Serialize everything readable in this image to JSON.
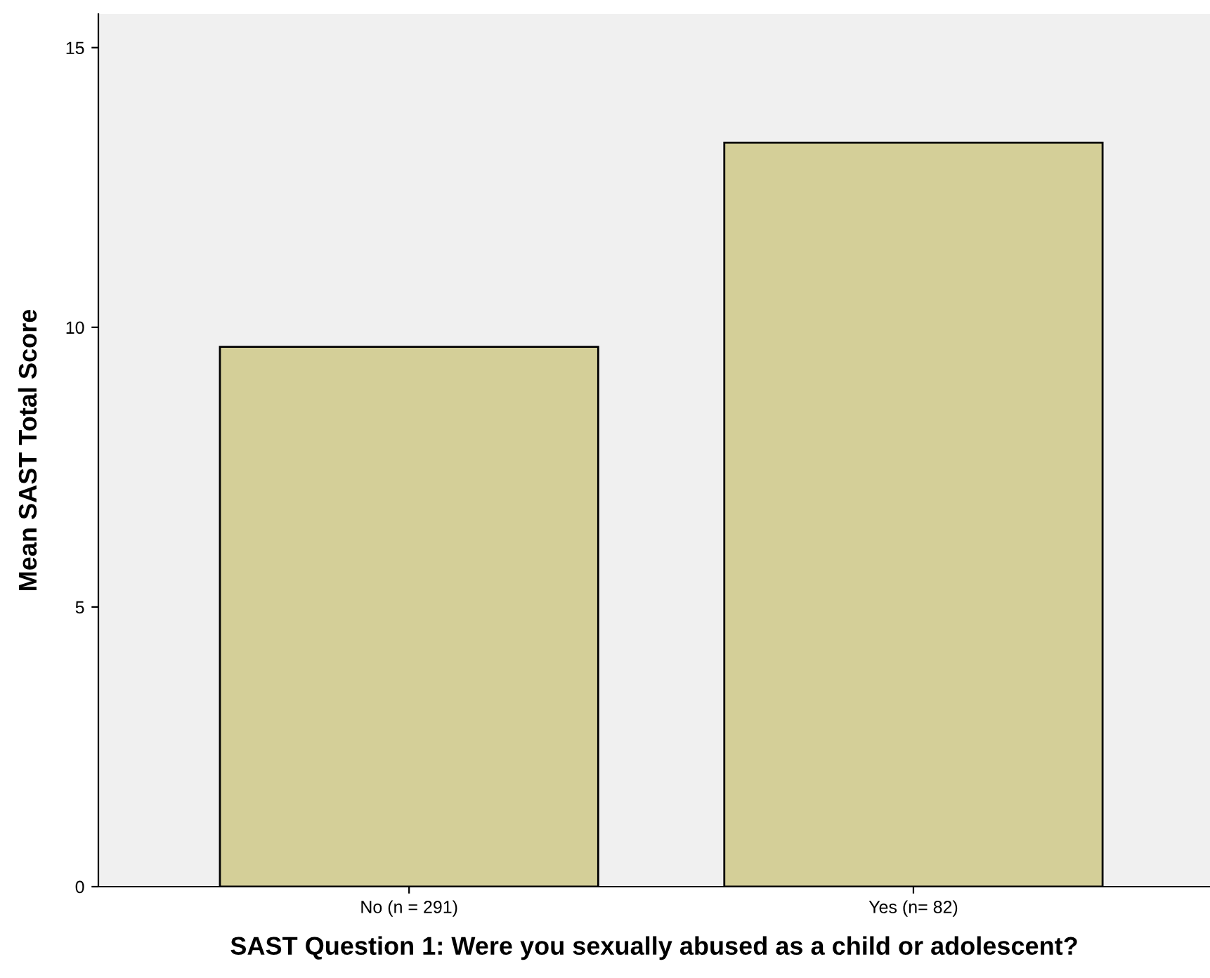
{
  "chart_data": {
    "type": "bar",
    "categories": [
      "No (n = 291)",
      "Yes (n= 82)"
    ],
    "values": [
      9.65,
      13.3
    ],
    "color": "#d4cf98",
    "xlabel": "SAST Question 1: Were you sexually abused as a child or adolescent?",
    "ylabel": "Mean SAST Total Score",
    "ylim": [
      0,
      15.6
    ],
    "yticks": [
      0,
      5,
      10,
      15
    ],
    "grid": false,
    "legend": false
  }
}
